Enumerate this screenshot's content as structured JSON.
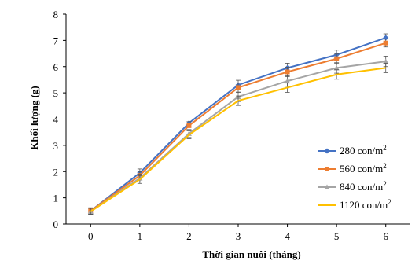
{
  "chart_data": {
    "type": "line",
    "title": "",
    "xlabel": "Thời gian nuôi (tháng)",
    "ylabel": "Khối lượng (g)",
    "x": [
      0,
      1,
      2,
      3,
      4,
      5,
      6
    ],
    "xlim": [
      -0.5,
      6.5
    ],
    "ylim": [
      0,
      8
    ],
    "yticks": [
      0,
      1,
      2,
      3,
      4,
      5,
      6,
      7,
      8
    ],
    "grid": false,
    "legend_position": "bottom-right",
    "error_bars": true,
    "series": [
      {
        "name": "280 con/m",
        "name_sup": "2",
        "color": "#4472C4",
        "marker": "diamond",
        "values": [
          0.5,
          1.95,
          3.85,
          5.3,
          5.95,
          6.45,
          7.1
        ],
        "errors": [
          0.12,
          0.15,
          0.15,
          0.18,
          0.18,
          0.18,
          0.15
        ]
      },
      {
        "name": "560 con/m",
        "name_sup": "2",
        "color": "#ED7D31",
        "marker": "square",
        "values": [
          0.5,
          1.85,
          3.75,
          5.2,
          5.8,
          6.3,
          6.9
        ],
        "errors": [
          0.12,
          0.15,
          0.15,
          0.18,
          0.18,
          0.18,
          0.15
        ]
      },
      {
        "name": "840 con/m",
        "name_sup": "2",
        "color": "#A5A5A5",
        "marker": "triangle",
        "values": [
          0.48,
          1.75,
          3.45,
          4.85,
          5.45,
          5.95,
          6.2
        ],
        "errors": [
          0.12,
          0.15,
          0.15,
          0.18,
          0.2,
          0.2,
          0.2
        ]
      },
      {
        "name": "1120 con/m",
        "name_sup": "2",
        "color": "#FFC000",
        "marker": "none",
        "values": [
          0.48,
          1.7,
          3.4,
          4.7,
          5.2,
          5.7,
          5.95
        ],
        "errors": [
          0.12,
          0.15,
          0.15,
          0.18,
          0.18,
          0.18,
          0.18
        ]
      }
    ]
  }
}
